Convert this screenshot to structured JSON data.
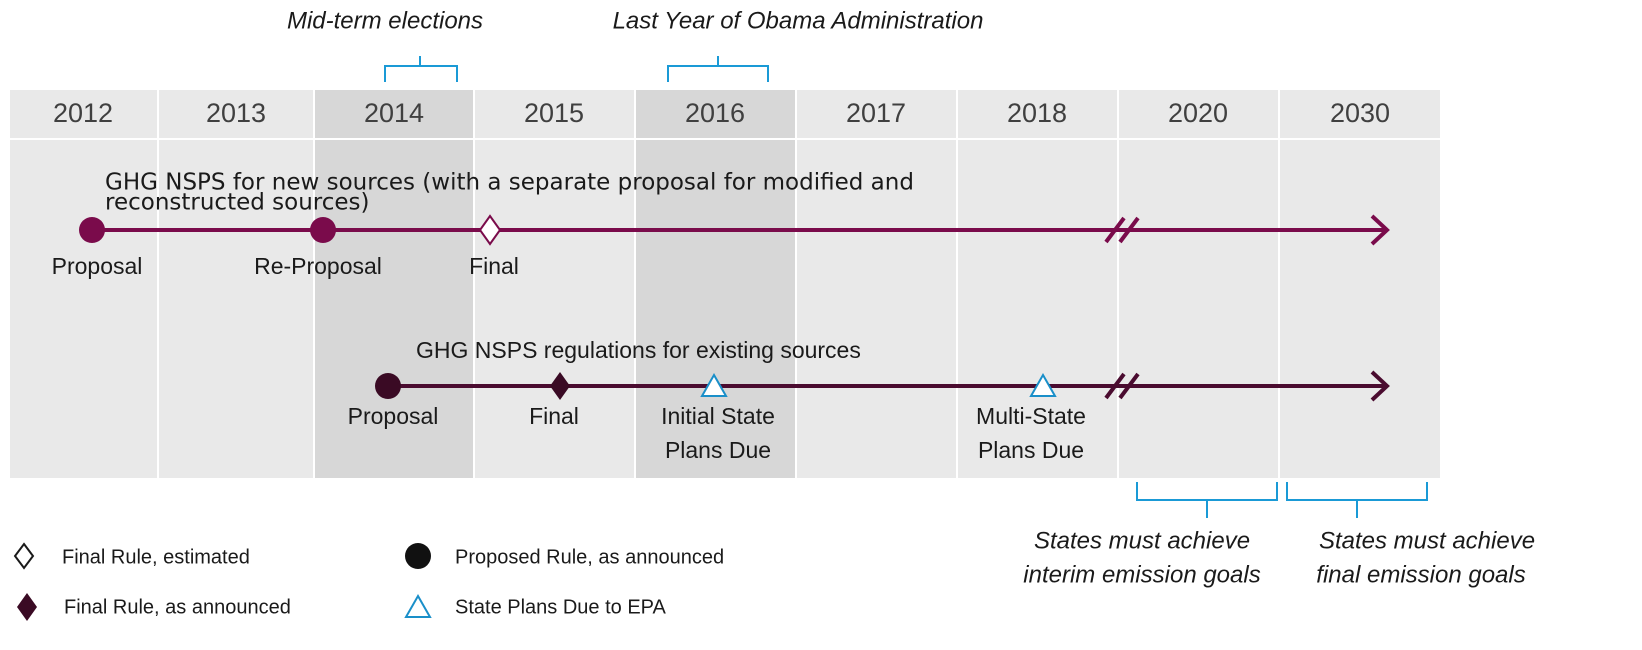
{
  "annotations_top": [
    "Mid-term elections",
    "Last Year of Obama Administration"
  ],
  "years": [
    "2012",
    "2013",
    "2014",
    "2015",
    "2016",
    "2017",
    "2018",
    "2020",
    "2030"
  ],
  "timelines": [
    {
      "title_lines": [
        "GHG NSPS for new sources (with a separate proposal for modified and",
        "reconstructed sources)"
      ],
      "events": [
        [
          "Proposal"
        ],
        [
          "Re-Proposal"
        ],
        [
          "Final"
        ]
      ]
    },
    {
      "title_lines": [
        "GHG NSPS regulations for existing sources"
      ],
      "events": [
        [
          "Proposal"
        ],
        [
          "Final"
        ],
        [
          "Initial State",
          "Plans Due"
        ],
        [
          "Multi-State",
          "Plans Due"
        ]
      ]
    }
  ],
  "annotations_bottom": [
    [
      "States must achieve",
      "interim emission goals"
    ],
    [
      "States must achieve",
      "final emission goals"
    ]
  ],
  "legend": [
    "Final Rule, estimated",
    "Proposed Rule, as announced",
    "Final Rule, as announced",
    "State Plans Due to EPA"
  ]
}
